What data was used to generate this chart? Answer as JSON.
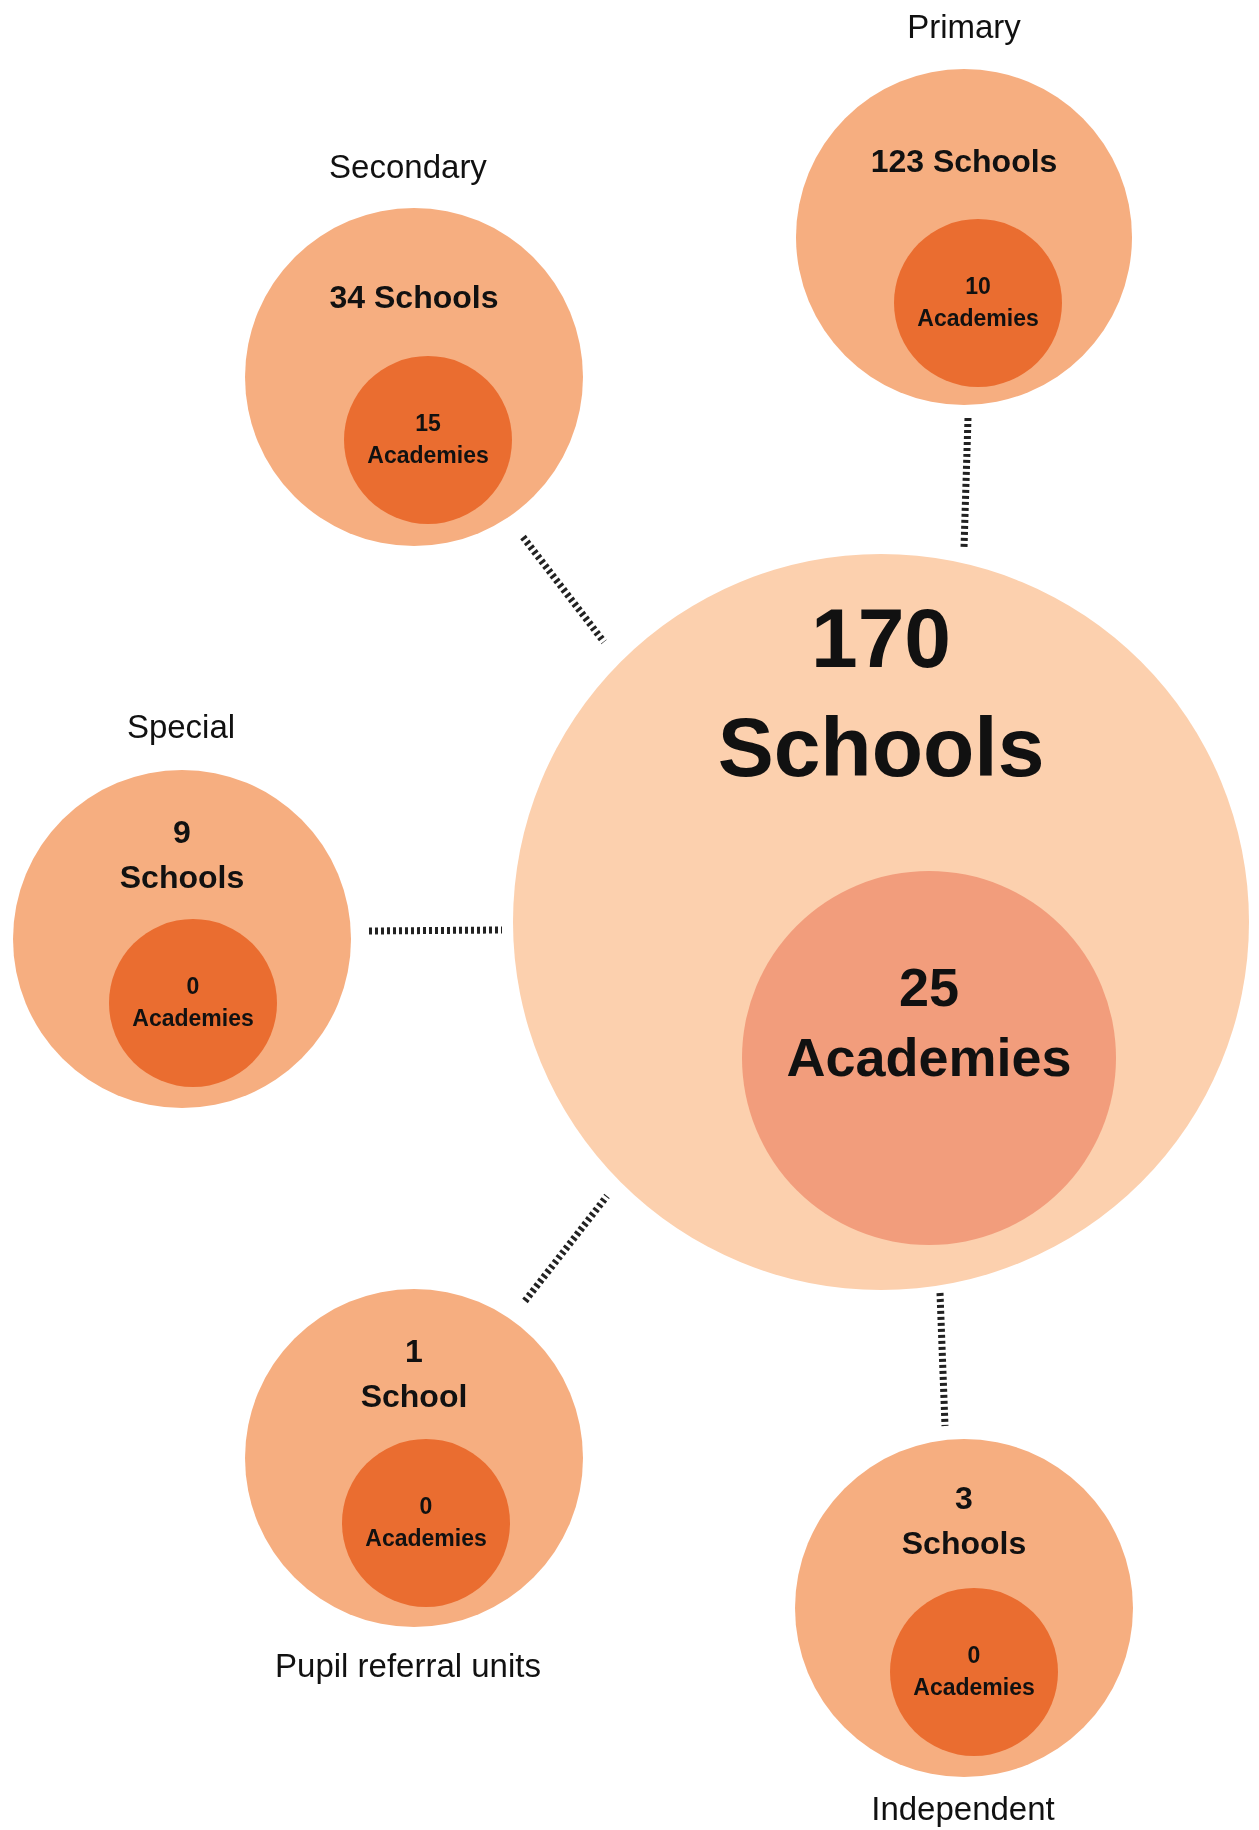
{
  "chart_data": {
    "type": "other",
    "categories": [
      "Primary",
      "Secondary",
      "Special",
      "Pupil referral units",
      "Independent"
    ],
    "series": [
      {
        "values": [
          123,
          34,
          9,
          1,
          3
        ],
        "value_labels": [
          "123 Schools",
          "34 Schools",
          "9 Schools",
          "1 School",
          "3 Schools"
        ],
        "colors": [
          "#f6ae80",
          "#f6ae80",
          "#f6ae80",
          "#f6ae80",
          "#f6ae80"
        ]
      },
      {
        "values": [
          10,
          15,
          0,
          0,
          0
        ],
        "value_labels": [
          "10 Academies",
          "15 Academies",
          "0 Academies",
          "0 Academies",
          "0 Academies"
        ],
        "colors": [
          "#ea6d30",
          "#ea6d30",
          "#ea6d30",
          "#ea6d30",
          "#ea6d30"
        ]
      }
    ],
    "annotations": [
      "170 Schools",
      "25 Academies"
    ]
  }
}
